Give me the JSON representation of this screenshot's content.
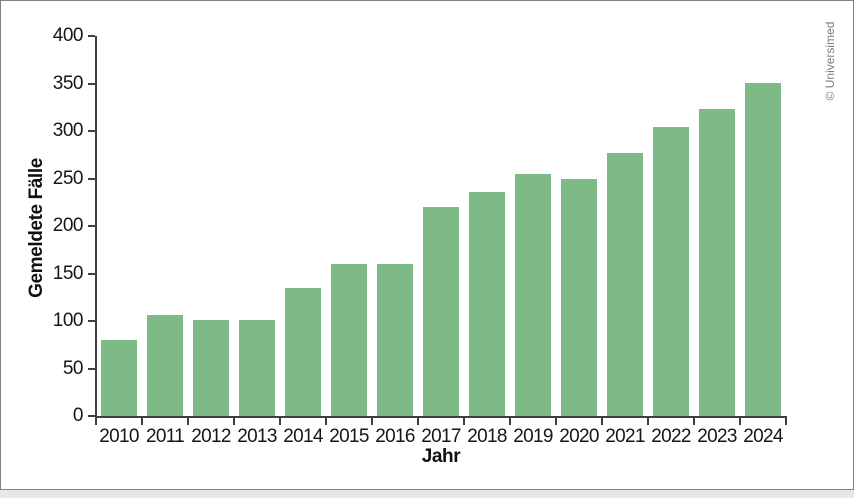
{
  "frame": {
    "copyright": "© Universimed",
    "card_background": "#ffffff",
    "card_border_color": "#828282",
    "outer_background": "#e7e7e7"
  },
  "chart_data": {
    "type": "bar",
    "title": "",
    "xlabel": "Jahr",
    "ylabel": "Gemeldete Fälle",
    "categories": [
      "2010",
      "2011",
      "2012",
      "2013",
      "2014",
      "2015",
      "2016",
      "2017",
      "2018",
      "2019",
      "2020",
      "2021",
      "2022",
      "2023",
      "2024"
    ],
    "values": [
      80,
      106,
      101,
      101,
      135,
      160,
      160,
      220,
      236,
      255,
      250,
      277,
      304,
      323,
      351
    ],
    "ylim": [
      0,
      400
    ],
    "ytick_step": 50,
    "yticks": [
      0,
      50,
      100,
      150,
      200,
      250,
      300,
      350,
      400
    ],
    "bar_color": "#7dba88",
    "axis_color": "#3f3f3f",
    "grid": false,
    "legend": false
  }
}
